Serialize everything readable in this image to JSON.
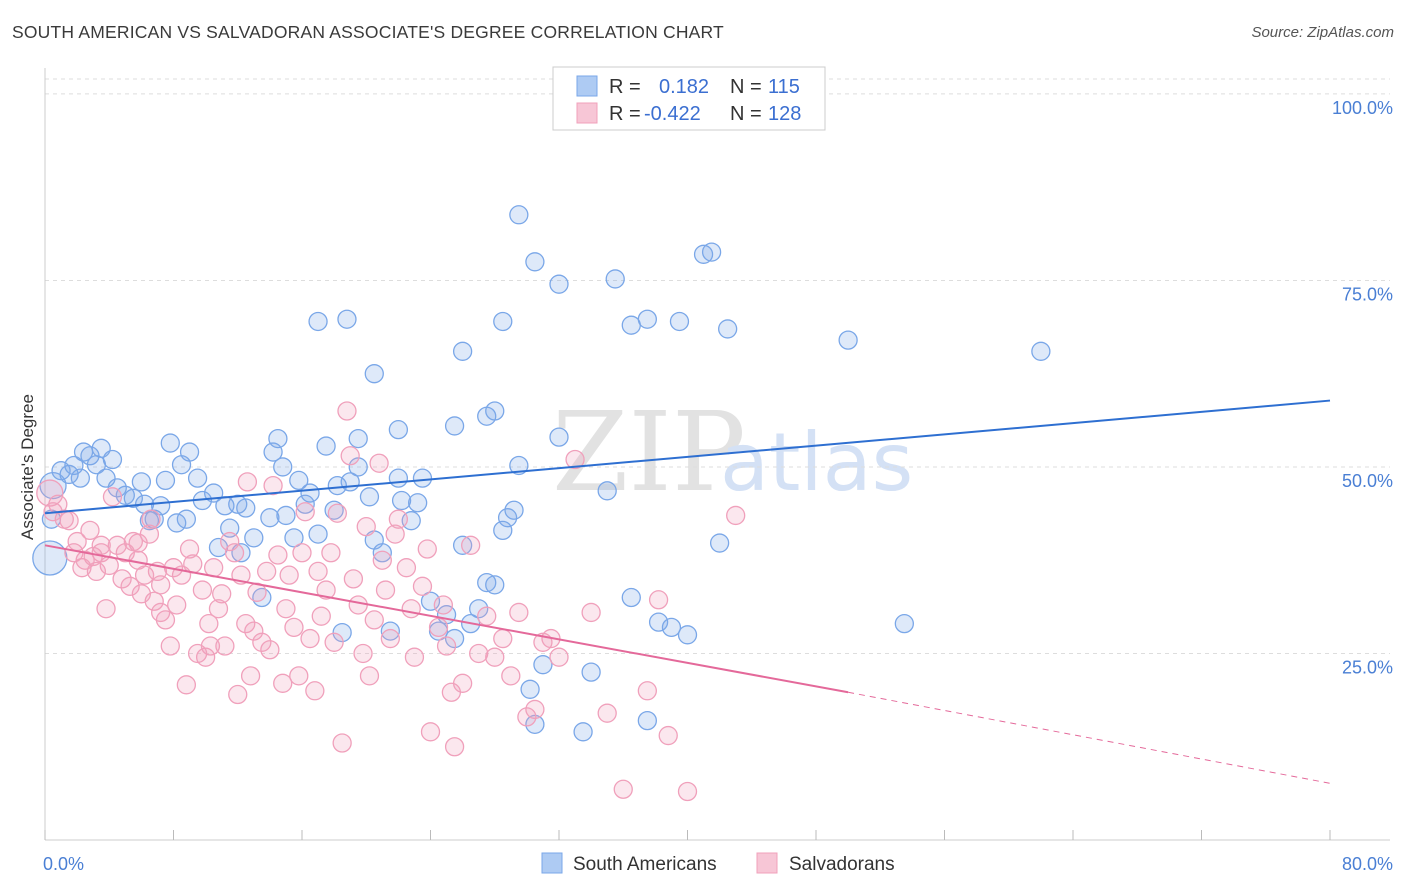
{
  "header": {
    "title": "SOUTH AMERICAN VS SALVADORAN ASSOCIATE'S DEGREE CORRELATION CHART",
    "source": "Source: ZipAtlas.com"
  },
  "legend": {
    "rows": [
      {
        "r_label": "R =",
        "r_value": "0.182",
        "n_label": "N =",
        "n_value": "115",
        "color": "#7aa7e8"
      },
      {
        "r_label": "R =",
        "r_value": "-0.422",
        "n_label": "N =",
        "n_value": "128",
        "color": "#f0a0bb"
      }
    ]
  },
  "bottom_legend": {
    "items": [
      {
        "label": "South Americans",
        "color": "#7aa7e8"
      },
      {
        "label": "Salvadorans",
        "color": "#f0a0bb"
      }
    ]
  },
  "watermark": {
    "zip": "ZIP",
    "atlas": "atlas"
  },
  "chart_data": {
    "type": "scatter",
    "title": "SOUTH AMERICAN VS SALVADORAN ASSOCIATE'S DEGREE CORRELATION CHART",
    "xlabel": "",
    "ylabel": "Associate's Degree",
    "xlim": [
      0,
      80
    ],
    "ylim": [
      0,
      102
    ],
    "x_tick_labels": [
      "0.0%",
      "80.0%"
    ],
    "y_ticks": [
      25,
      50,
      75,
      100
    ],
    "y_tick_labels": [
      "25.0%",
      "50.0%",
      "75.0%",
      "100.0%"
    ],
    "grid": true,
    "series": [
      {
        "name": "South Americans",
        "color": "#7aa7e8",
        "line_color": "#2e6fd1",
        "r": 0.182,
        "n": 115,
        "trend": {
          "x0": 0,
          "y0": 43.8,
          "x1": 80,
          "y1": 58.9
        },
        "points": [
          [
            0.3,
            37.8
          ],
          [
            0.4,
            43.0
          ],
          [
            0.5,
            47.5
          ],
          [
            1.0,
            49.5
          ],
          [
            1.5,
            49.0
          ],
          [
            1.8,
            50.2
          ],
          [
            2.2,
            48.5
          ],
          [
            2.4,
            52.0
          ],
          [
            2.8,
            51.5
          ],
          [
            3.2,
            50.3
          ],
          [
            3.5,
            52.5
          ],
          [
            3.8,
            48.5
          ],
          [
            4.2,
            51.0
          ],
          [
            4.5,
            47.2
          ],
          [
            5.0,
            46.2
          ],
          [
            5.5,
            45.8
          ],
          [
            6.0,
            48.0
          ],
          [
            6.2,
            45.0
          ],
          [
            6.5,
            42.8
          ],
          [
            6.8,
            43.0
          ],
          [
            7.2,
            44.8
          ],
          [
            7.5,
            48.2
          ],
          [
            7.8,
            53.2
          ],
          [
            8.2,
            42.5
          ],
          [
            8.5,
            50.3
          ],
          [
            8.8,
            43.0
          ],
          [
            9.0,
            52.0
          ],
          [
            9.5,
            48.5
          ],
          [
            9.8,
            45.5
          ],
          [
            10.5,
            46.5
          ],
          [
            10.8,
            39.2
          ],
          [
            11.2,
            44.8
          ],
          [
            11.5,
            41.8
          ],
          [
            12.0,
            45.0
          ],
          [
            12.2,
            38.5
          ],
          [
            12.5,
            44.5
          ],
          [
            13.0,
            40.5
          ],
          [
            13.5,
            32.5
          ],
          [
            14.0,
            43.2
          ],
          [
            14.2,
            52.0
          ],
          [
            14.5,
            53.8
          ],
          [
            14.8,
            50.0
          ],
          [
            15.0,
            43.5
          ],
          [
            15.5,
            40.5
          ],
          [
            15.8,
            48.2
          ],
          [
            16.2,
            45.0
          ],
          [
            16.5,
            46.5
          ],
          [
            17.0,
            41.0
          ],
          [
            17.5,
            52.8
          ],
          [
            18.0,
            44.2
          ],
          [
            18.2,
            47.5
          ],
          [
            18.5,
            27.8
          ],
          [
            19.0,
            48.0
          ],
          [
            19.5,
            50.0
          ],
          [
            20.2,
            46.0
          ],
          [
            20.5,
            40.2
          ],
          [
            21.0,
            38.5
          ],
          [
            21.5,
            28.0
          ],
          [
            22.0,
            48.5
          ],
          [
            22.2,
            45.5
          ],
          [
            22.8,
            42.8
          ],
          [
            23.2,
            45.2
          ],
          [
            23.5,
            48.5
          ],
          [
            24.0,
            32.0
          ],
          [
            24.5,
            28.0
          ],
          [
            25.0,
            30.2
          ],
          [
            25.5,
            27.0
          ],
          [
            26.0,
            39.5
          ],
          [
            26.5,
            29.0
          ],
          [
            27.0,
            31.0
          ],
          [
            27.5,
            34.5
          ],
          [
            28.0,
            34.2
          ],
          [
            28.5,
            41.5
          ],
          [
            28.8,
            43.2
          ],
          [
            29.2,
            44.2
          ],
          [
            29.5,
            50.2
          ],
          [
            30.2,
            20.2
          ],
          [
            30.5,
            15.5
          ],
          [
            31.0,
            23.5
          ],
          [
            32.0,
            54.0
          ],
          [
            33.5,
            14.5
          ],
          [
            34.0,
            22.5
          ],
          [
            35.0,
            46.8
          ],
          [
            36.5,
            32.5
          ],
          [
            37.5,
            16.0
          ],
          [
            38.2,
            29.2
          ],
          [
            39.0,
            28.5
          ],
          [
            40.0,
            27.5
          ],
          [
            42.0,
            39.8
          ],
          [
            18.8,
            69.8
          ],
          [
            19.5,
            53.8
          ],
          [
            20.5,
            62.5
          ],
          [
            22.0,
            55.0
          ],
          [
            25.5,
            55.5
          ],
          [
            26.0,
            65.5
          ],
          [
            27.5,
            56.8
          ],
          [
            28.5,
            69.5
          ],
          [
            29.5,
            83.8
          ],
          [
            30.5,
            77.5
          ],
          [
            32.0,
            74.5
          ],
          [
            35.5,
            75.2
          ],
          [
            36.5,
            69.0
          ],
          [
            37.5,
            69.8
          ],
          [
            39.5,
            69.5
          ],
          [
            41.0,
            78.5
          ],
          [
            41.5,
            78.8
          ],
          [
            42.5,
            68.5
          ],
          [
            50.0,
            67.0
          ],
          [
            53.5,
            29.0
          ],
          [
            62.0,
            65.5
          ],
          [
            17.0,
            69.5
          ],
          [
            28.0,
            57.5
          ]
        ]
      },
      {
        "name": "Salvadorans",
        "color": "#f0a0bb",
        "line_color": "#e4699a",
        "r": -0.422,
        "n": 128,
        "trend": {
          "x0": 0,
          "y0": 39.5,
          "x1": 50,
          "y1": 19.8,
          "dash_to_x": 80,
          "dash_to_y": 7.6
        },
        "points": [
          [
            0.3,
            46.5
          ],
          [
            0.5,
            44.0
          ],
          [
            0.8,
            45.0
          ],
          [
            1.2,
            43.0
          ],
          [
            1.5,
            42.8
          ],
          [
            1.8,
            38.5
          ],
          [
            2.0,
            40.0
          ],
          [
            2.3,
            36.5
          ],
          [
            2.5,
            37.5
          ],
          [
            2.8,
            41.5
          ],
          [
            3.0,
            38.0
          ],
          [
            3.2,
            36.0
          ],
          [
            3.5,
            39.5
          ],
          [
            3.8,
            31.0
          ],
          [
            4.2,
            46.0
          ],
          [
            4.5,
            39.5
          ],
          [
            4.8,
            35.0
          ],
          [
            5.0,
            38.5
          ],
          [
            5.3,
            34.0
          ],
          [
            5.5,
            40.0
          ],
          [
            5.8,
            39.8
          ],
          [
            6.0,
            33.0
          ],
          [
            6.2,
            35.5
          ],
          [
            6.5,
            41.0
          ],
          [
            6.8,
            32.0
          ],
          [
            7.0,
            36.0
          ],
          [
            7.2,
            34.2
          ],
          [
            7.5,
            29.5
          ],
          [
            7.8,
            26.0
          ],
          [
            8.0,
            36.5
          ],
          [
            8.2,
            31.5
          ],
          [
            8.5,
            35.5
          ],
          [
            8.8,
            20.8
          ],
          [
            9.0,
            39.0
          ],
          [
            9.2,
            37.0
          ],
          [
            9.5,
            25.0
          ],
          [
            9.8,
            33.5
          ],
          [
            10.0,
            24.5
          ],
          [
            10.2,
            29.0
          ],
          [
            10.5,
            36.5
          ],
          [
            10.8,
            31.0
          ],
          [
            11.0,
            33.0
          ],
          [
            11.2,
            26.0
          ],
          [
            11.5,
            40.0
          ],
          [
            11.8,
            38.5
          ],
          [
            12.0,
            19.5
          ],
          [
            12.2,
            35.5
          ],
          [
            12.5,
            29.0
          ],
          [
            12.8,
            22.0
          ],
          [
            13.0,
            28.0
          ],
          [
            13.2,
            33.2
          ],
          [
            13.5,
            26.5
          ],
          [
            13.8,
            36.0
          ],
          [
            14.0,
            25.5
          ],
          [
            14.2,
            47.5
          ],
          [
            14.5,
            38.2
          ],
          [
            14.8,
            21.0
          ],
          [
            15.0,
            31.0
          ],
          [
            15.2,
            35.5
          ],
          [
            15.5,
            28.5
          ],
          [
            15.8,
            22.0
          ],
          [
            16.0,
            38.5
          ],
          [
            16.2,
            44.0
          ],
          [
            16.5,
            27.0
          ],
          [
            16.8,
            20.0
          ],
          [
            17.0,
            36.0
          ],
          [
            17.2,
            30.0
          ],
          [
            17.5,
            33.5
          ],
          [
            17.8,
            38.5
          ],
          [
            18.0,
            26.5
          ],
          [
            18.2,
            43.8
          ],
          [
            18.5,
            13.0
          ],
          [
            18.8,
            57.5
          ],
          [
            19.0,
            51.5
          ],
          [
            19.2,
            35.0
          ],
          [
            19.5,
            31.5
          ],
          [
            19.8,
            25.0
          ],
          [
            20.0,
            42.0
          ],
          [
            20.2,
            22.0
          ],
          [
            20.5,
            29.5
          ],
          [
            20.8,
            50.5
          ],
          [
            21.0,
            37.5
          ],
          [
            21.2,
            33.5
          ],
          [
            21.5,
            27.0
          ],
          [
            21.8,
            41.0
          ],
          [
            22.0,
            43.0
          ],
          [
            22.5,
            36.5
          ],
          [
            22.8,
            31.0
          ],
          [
            23.0,
            24.5
          ],
          [
            23.5,
            34.0
          ],
          [
            23.8,
            39.0
          ],
          [
            24.0,
            14.5
          ],
          [
            24.5,
            28.5
          ],
          [
            24.8,
            31.5
          ],
          [
            25.0,
            26.0
          ],
          [
            25.3,
            19.8
          ],
          [
            25.5,
            12.5
          ],
          [
            26.0,
            21.0
          ],
          [
            26.5,
            39.5
          ],
          [
            27.0,
            25.0
          ],
          [
            27.5,
            30.0
          ],
          [
            28.0,
            24.5
          ],
          [
            28.5,
            27.0
          ],
          [
            29.0,
            22.0
          ],
          [
            29.5,
            30.5
          ],
          [
            30.0,
            16.5
          ],
          [
            30.5,
            17.5
          ],
          [
            31.0,
            26.5
          ],
          [
            31.5,
            27.0
          ],
          [
            32.0,
            24.5
          ],
          [
            33.0,
            51.0
          ],
          [
            34.0,
            30.5
          ],
          [
            35.0,
            17.0
          ],
          [
            36.0,
            6.8
          ],
          [
            37.5,
            20.0
          ],
          [
            38.2,
            32.2
          ],
          [
            38.8,
            14.0
          ],
          [
            40.0,
            6.5
          ],
          [
            43.0,
            43.5
          ],
          [
            3.5,
            38.5
          ],
          [
            4.0,
            36.8
          ],
          [
            5.8,
            37.5
          ],
          [
            7.2,
            30.5
          ],
          [
            6.6,
            43.0
          ],
          [
            10.3,
            26.0
          ],
          [
            12.6,
            48.0
          ]
        ]
      }
    ]
  }
}
